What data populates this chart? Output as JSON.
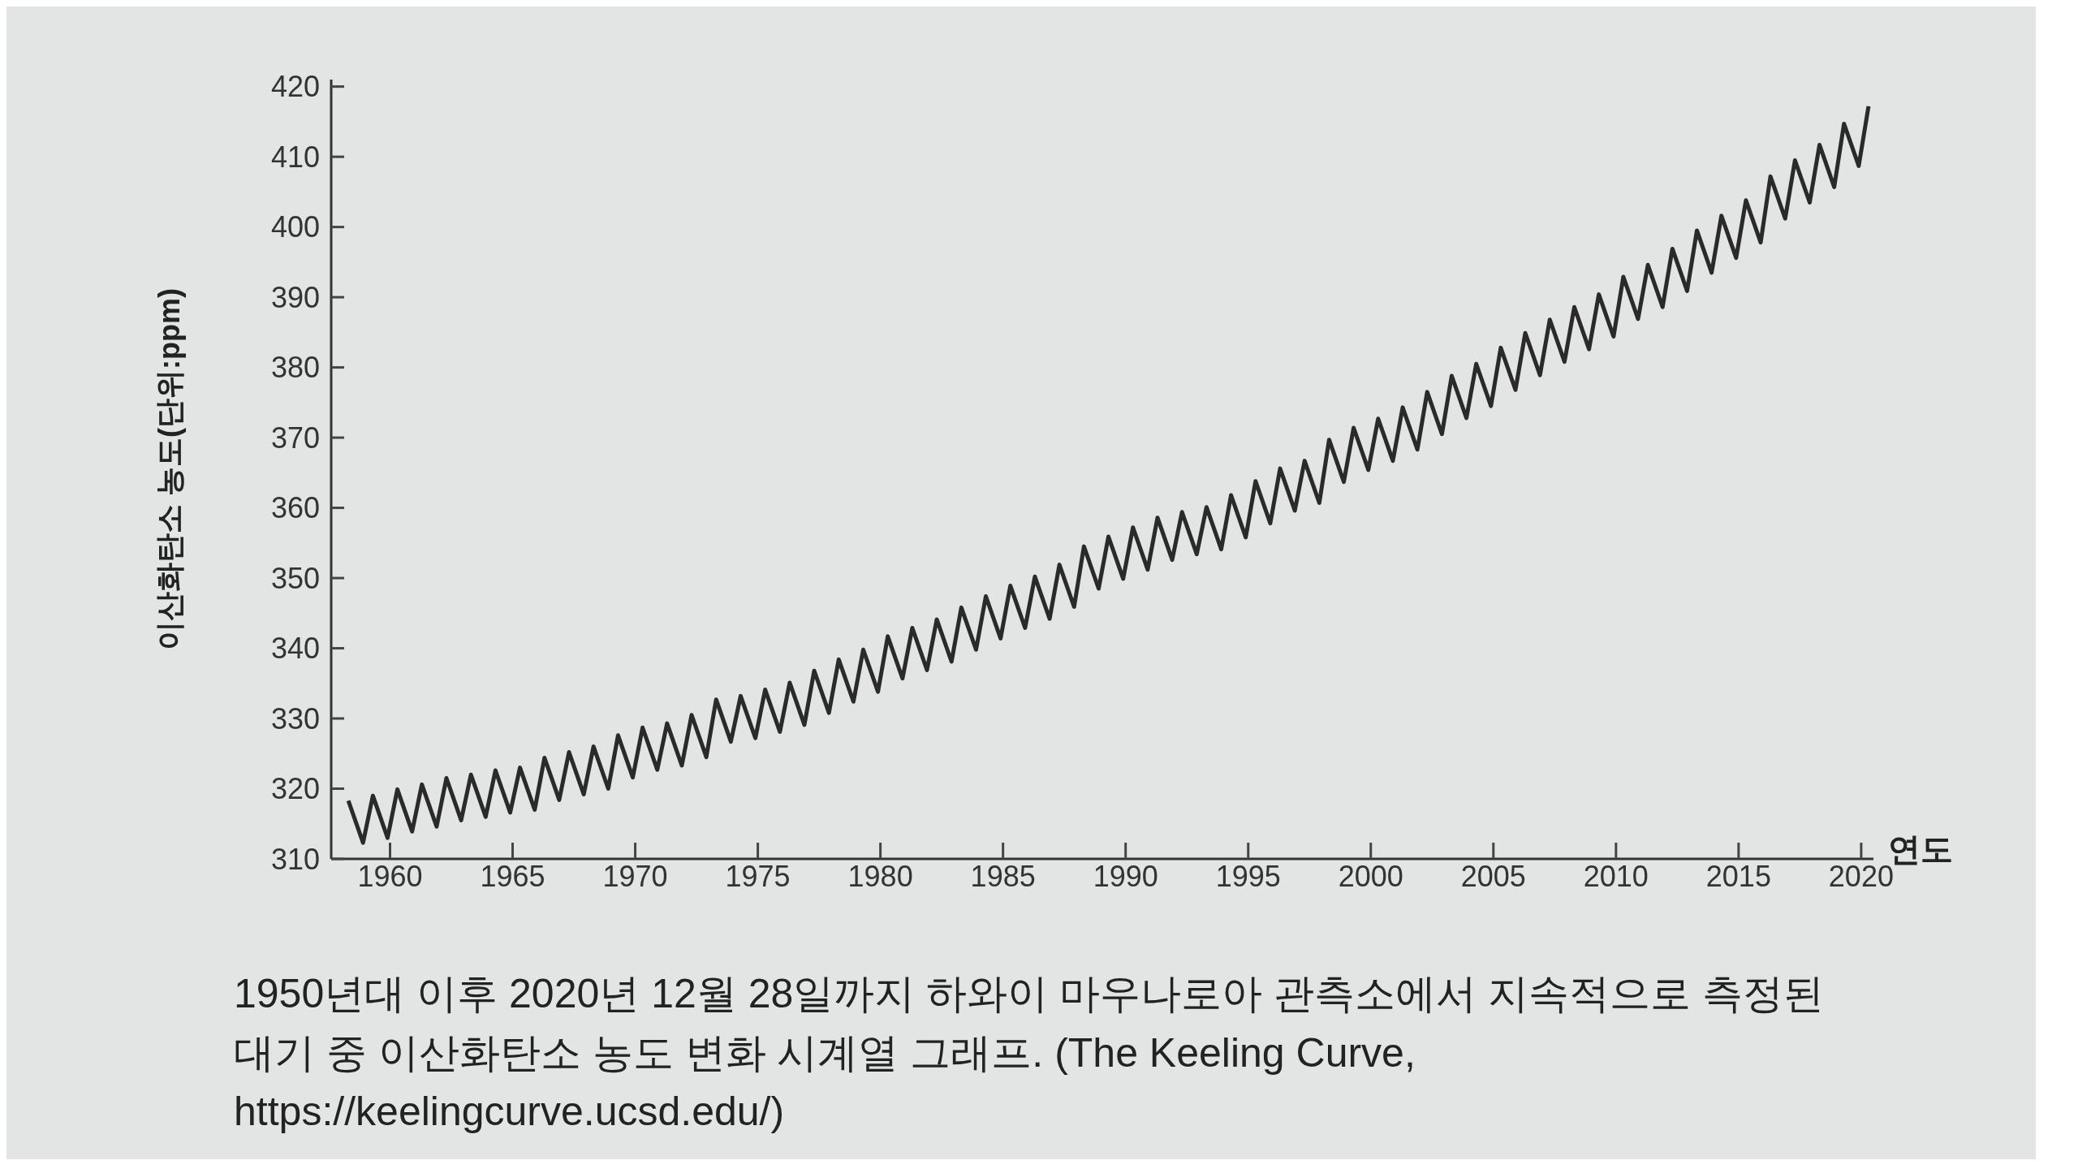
{
  "chart_data": {
    "type": "line",
    "xlabel": "연도",
    "ylabel": "이산화탄소 농도(단위:ppm)",
    "annotations": [
      "1950년대 이후 2020년 12월 28일까지 하와이 마우나로아 관측소에서 지속적으로 측정된 대기 중 이산화탄소 농도 변화 시계열 그래프. (The Keeling Curve, https://keelingcurve.ucsd.edu/)"
    ],
    "xlim": [
      1957.6,
      2020.5
    ],
    "xticks": [
      1960,
      1965,
      1970,
      1975,
      1980,
      1985,
      1990,
      1995,
      2000,
      2005,
      2010,
      2015,
      2020
    ],
    "ylim": [
      310,
      421
    ],
    "yticks": [
      310,
      320,
      330,
      340,
      350,
      360,
      370,
      380,
      390,
      400,
      410,
      420
    ],
    "series": [
      {
        "color": "#2a2a2a",
        "x": [
          1958.3,
          1958.9,
          1959.3,
          1959.9,
          1960.3,
          1960.9,
          1961.3,
          1961.9,
          1962.3,
          1962.9,
          1963.3,
          1963.9,
          1964.3,
          1964.9,
          1965.3,
          1965.9,
          1966.3,
          1966.9,
          1967.3,
          1967.9,
          1968.3,
          1968.9,
          1969.3,
          1969.9,
          1970.3,
          1970.9,
          1971.3,
          1971.9,
          1972.3,
          1972.9,
          1973.3,
          1973.9,
          1974.3,
          1974.9,
          1975.3,
          1975.9,
          1976.3,
          1976.9,
          1977.3,
          1977.9,
          1978.3,
          1978.9,
          1979.3,
          1979.9,
          1980.3,
          1980.9,
          1981.3,
          1981.9,
          1982.3,
          1982.9,
          1983.3,
          1983.9,
          1984.3,
          1984.9,
          1985.3,
          1985.9,
          1986.3,
          1986.9,
          1987.3,
          1987.9,
          1988.3,
          1988.9,
          1989.3,
          1989.9,
          1990.3,
          1990.9,
          1991.3,
          1991.9,
          1992.3,
          1992.9,
          1993.3,
          1993.9,
          1994.3,
          1994.9,
          1995.3,
          1995.9,
          1996.3,
          1996.9,
          1997.3,
          1997.9,
          1998.3,
          1998.9,
          1999.3,
          1999.9,
          2000.3,
          2000.9,
          2001.3,
          2001.9,
          2002.3,
          2002.9,
          2003.3,
          2003.9,
          2004.3,
          2004.9,
          2005.3,
          2005.9,
          2006.3,
          2006.9,
          2007.3,
          2007.9,
          2008.3,
          2008.9,
          2009.3,
          2009.9,
          2010.3,
          2010.9,
          2011.3,
          2011.9,
          2012.3,
          2012.9,
          2013.3,
          2013.9,
          2014.3,
          2014.9,
          2015.3,
          2015.9,
          2016.3,
          2016.9,
          2017.3,
          2017.9,
          2018.3,
          2018.9,
          2019.3,
          2019.9,
          2020.3
        ],
        "values": [
          318.3,
          312.3,
          319.0,
          313.0,
          319.9,
          313.9,
          320.6,
          314.6,
          321.5,
          315.5,
          322.0,
          316.0,
          322.6,
          316.6,
          323.0,
          317.0,
          324.4,
          318.4,
          325.2,
          319.2,
          326.0,
          320.0,
          327.6,
          321.6,
          328.7,
          322.7,
          329.3,
          323.3,
          330.5,
          324.5,
          332.7,
          326.7,
          333.2,
          327.2,
          334.1,
          328.1,
          335.1,
          329.1,
          336.8,
          330.8,
          338.4,
          332.4,
          339.8,
          333.8,
          341.7,
          335.7,
          342.9,
          336.9,
          344.1,
          338.1,
          345.8,
          339.8,
          347.4,
          341.4,
          348.9,
          342.9,
          350.2,
          344.2,
          351.9,
          345.9,
          354.5,
          348.5,
          355.9,
          349.9,
          357.2,
          351.2,
          358.6,
          352.6,
          359.4,
          353.4,
          360.1,
          354.1,
          361.8,
          355.8,
          363.8,
          357.8,
          365.6,
          359.6,
          366.7,
          360.7,
          369.7,
          363.7,
          371.4,
          365.4,
          372.7,
          366.7,
          374.3,
          368.3,
          376.5,
          370.5,
          378.8,
          372.8,
          380.5,
          374.5,
          382.8,
          376.8,
          384.9,
          378.9,
          386.8,
          380.8,
          388.6,
          382.6,
          390.4,
          384.4,
          392.9,
          386.9,
          394.6,
          388.6,
          396.9,
          390.9,
          399.5,
          393.5,
          401.6,
          395.6,
          403.8,
          397.8,
          407.2,
          401.2,
          409.5,
          403.5,
          411.7,
          405.7,
          414.7,
          408.7,
          417.2
        ]
      }
    ]
  }
}
